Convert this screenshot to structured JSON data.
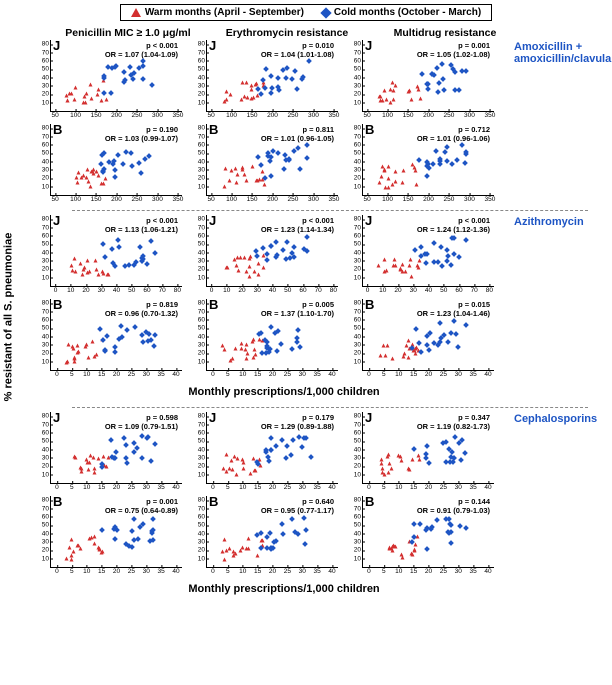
{
  "legend": {
    "warm": "Warm months (April - September)",
    "cold": "Cold months (October - March)"
  },
  "columns": [
    "Penicillin MIC ≥ 1.0 μg/ml",
    "Erythromycin resistance",
    "Multidrug resistance"
  ],
  "yAxisLabel": "% resistant of all S. pneumoniae",
  "xAxisLabel": "Monthly prescriptions/1,000 children",
  "colors": {
    "warm": "#d32f2f",
    "cold": "#1e55c4",
    "axis": "#000000",
    "bg": "#ffffff",
    "drugLabel": "#1e55c4"
  },
  "yTicks": [
    10,
    20,
    30,
    40,
    50,
    60,
    70,
    80
  ],
  "yRange": [
    0,
    85
  ],
  "drugs": [
    {
      "name": "Amoxicillin + amoxicillin/clavulanate",
      "xTicks": [
        50,
        100,
        150,
        200,
        250,
        300,
        350
      ],
      "xRange": [
        40,
        360
      ],
      "rows": [
        {
          "letter": "J",
          "panels": [
            {
              "p": "p < 0.001",
              "or": "OR = 1.07 (1.04-1.09)"
            },
            {
              "p": "p = 0.010",
              "or": "OR = 1.04 (1.01-1.08)"
            },
            {
              "p": "p = 0.001",
              "or": "OR = 1.05 (1.02-1.08)"
            }
          ]
        },
        {
          "letter": "B",
          "panels": [
            {
              "p": "p = 0.190",
              "or": "OR = 1.03 (0.99-1.07)"
            },
            {
              "p": "p = 0.811",
              "or": "OR = 1.01 (0.96-1.05)"
            },
            {
              "p": "p = 0.712",
              "or": "OR = 1.01 (0.96-1.06)"
            }
          ]
        }
      ]
    },
    {
      "name": "Azithromycin",
      "xTicks": [
        0,
        10,
        20,
        30,
        40,
        50,
        60,
        70,
        80
      ],
      "xRange": [
        -3,
        83
      ],
      "rows": [
        {
          "letter": "J",
          "panels": [
            {
              "p": "p < 0.001",
              "or": "OR = 1.13 (1.06-1.21)"
            },
            {
              "p": "p < 0.001",
              "or": "OR = 1.23 (1.14-1.34)"
            },
            {
              "p": "p < 0.001",
              "or": "OR = 1.24 (1.12-1.36)"
            }
          ]
        },
        {
          "letter": "B",
          "panels": [
            {
              "p": "p = 0.819",
              "or": "OR = 0.96 (0.70-1.32)"
            },
            {
              "p": "p = 0.005",
              "or": "OR = 1.37 (1.10-1.70)"
            },
            {
              "p": "p = 0.015",
              "or": "OR = 1.23 (1.04-1.46)"
            }
          ]
        }
      ],
      "xTicksB": [
        0,
        5,
        10,
        15,
        20,
        25,
        30,
        35,
        40
      ],
      "xRangeB": [
        -2,
        42
      ]
    },
    {
      "name": "Cephalosporins",
      "xTicks": [
        0,
        5,
        10,
        15,
        20,
        25,
        30,
        35,
        40
      ],
      "xRange": [
        -2,
        42
      ],
      "rows": [
        {
          "letter": "J",
          "panels": [
            {
              "p": "p = 0.598",
              "or": "OR = 1.09 (0.79-1.51)"
            },
            {
              "p": "p = 0.179",
              "or": "OR = 1.29 (0.89-1.88)"
            },
            {
              "p": "p = 0.347",
              "or": "OR = 1.19 (0.82-1.73)"
            }
          ]
        },
        {
          "letter": "B",
          "panels": [
            {
              "p": "p = 0.001",
              "or": "OR = 0.75 (0.64-0.89)"
            },
            {
              "p": "p = 0.640",
              "or": "OR = 0.95 (0.77-1.17)"
            },
            {
              "p": "p = 0.144",
              "or": "OR = 0.91 (0.79-1.03)"
            }
          ]
        }
      ]
    }
  ]
}
